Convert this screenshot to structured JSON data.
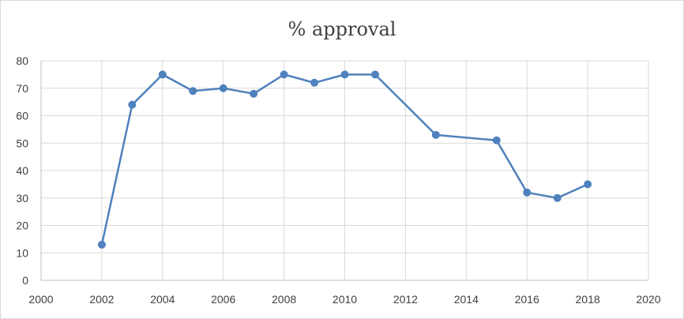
{
  "chart_data": {
    "type": "scatter",
    "mode": "lines+markers",
    "title": "% approval",
    "xlabel": "",
    "ylabel": "",
    "xlim": [
      2000,
      2020
    ],
    "ylim": [
      0,
      80
    ],
    "x_ticks": [
      2000,
      2002,
      2004,
      2006,
      2008,
      2010,
      2012,
      2014,
      2016,
      2018,
      2020
    ],
    "y_ticks": [
      0,
      10,
      20,
      30,
      40,
      50,
      60,
      70,
      80
    ],
    "grid": true,
    "legend": "none",
    "series": [
      {
        "color": "#4f81bd",
        "x": [
          2002,
          2003,
          2004,
          2005,
          2006,
          2007,
          2008,
          2009,
          2010,
          2011,
          2013,
          2015,
          2016,
          2017,
          2018
        ],
        "y": [
          13,
          64,
          75,
          69,
          70,
          68,
          75,
          72,
          75,
          75,
          53,
          51,
          32,
          30,
          35
        ]
      }
    ]
  }
}
